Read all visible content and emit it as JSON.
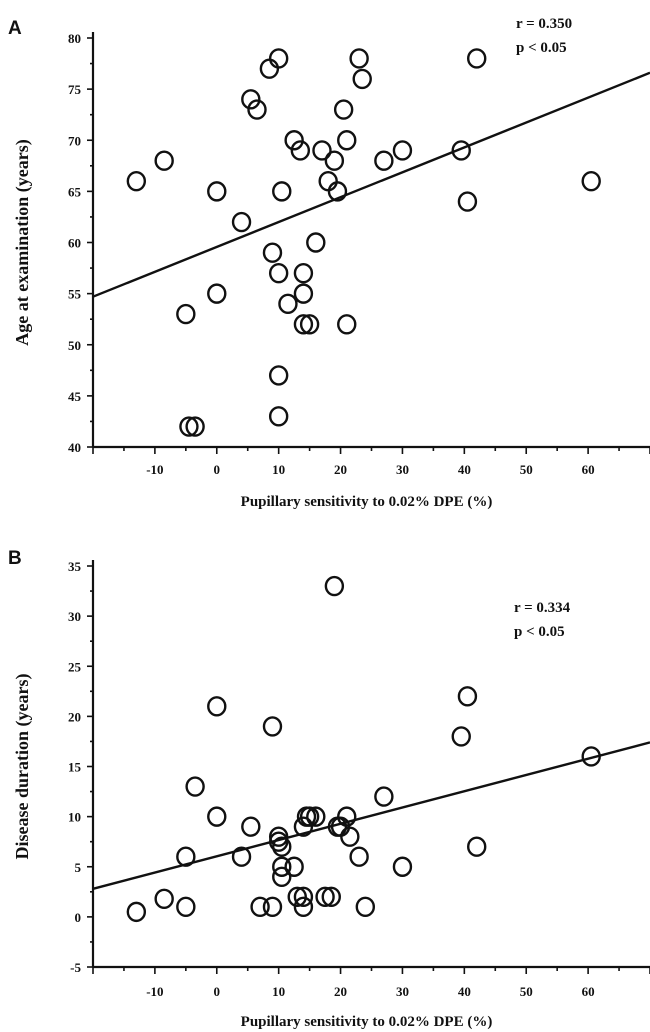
{
  "chart_data": [
    {
      "type": "scatter",
      "panel": "A",
      "xlabel": "Pupillary sensitivity to 0.02% DPE (%)",
      "ylabel": "Age at examination (years)",
      "xlim": [
        -20,
        70
      ],
      "ylim": [
        40,
        80
      ],
      "xticks": [
        -10,
        0,
        10,
        20,
        30,
        40,
        50,
        60
      ],
      "yticks": [
        40,
        45,
        50,
        55,
        60,
        65,
        70,
        75,
        80
      ],
      "stats": [
        "r = 0.350",
        "p < 0.05"
      ],
      "regression": {
        "x": [
          -20,
          70
        ],
        "y": [
          54.7,
          76.6
        ]
      },
      "points": [
        [
          -13,
          66
        ],
        [
          -8.5,
          68
        ],
        [
          -5,
          53
        ],
        [
          -4.5,
          42
        ],
        [
          -3.5,
          42
        ],
        [
          0,
          65
        ],
        [
          0,
          55
        ],
        [
          4,
          62
        ],
        [
          5.5,
          74
        ],
        [
          6.5,
          73
        ],
        [
          8.5,
          77
        ],
        [
          9,
          59
        ],
        [
          10,
          78
        ],
        [
          10,
          57
        ],
        [
          10,
          47
        ],
        [
          10,
          43
        ],
        [
          10.5,
          65
        ],
        [
          11.5,
          54
        ],
        [
          12.5,
          70
        ],
        [
          13.5,
          69
        ],
        [
          14,
          55
        ],
        [
          14,
          57
        ],
        [
          14,
          52
        ],
        [
          15,
          52
        ],
        [
          16,
          60
        ],
        [
          17,
          69
        ],
        [
          18,
          66
        ],
        [
          19,
          68
        ],
        [
          19.5,
          65
        ],
        [
          20.5,
          73
        ],
        [
          21,
          70
        ],
        [
          21,
          52
        ],
        [
          23,
          78
        ],
        [
          23.5,
          76
        ],
        [
          27,
          68
        ],
        [
          30,
          69
        ],
        [
          39.5,
          69
        ],
        [
          40.5,
          64
        ],
        [
          42,
          78
        ],
        [
          60.5,
          66
        ]
      ]
    },
    {
      "type": "scatter",
      "panel": "B",
      "xlabel": "Pupillary sensitivity to 0.02% DPE (%)",
      "ylabel": "Disease duration (years)",
      "xlim": [
        -20,
        70
      ],
      "ylim": [
        -5,
        35
      ],
      "xticks": [
        -10,
        0,
        10,
        20,
        30,
        40,
        50,
        60
      ],
      "yticks": [
        -5,
        0,
        5,
        10,
        15,
        20,
        25,
        30,
        35
      ],
      "stats": [
        "r = 0.334",
        "p < 0.05"
      ],
      "regression": {
        "x": [
          -20,
          70
        ],
        "y": [
          2.8,
          17.4
        ]
      },
      "points": [
        [
          -13,
          0.5
        ],
        [
          -8.5,
          1.8
        ],
        [
          -5,
          1
        ],
        [
          -5,
          6
        ],
        [
          -3.5,
          13
        ],
        [
          0,
          21
        ],
        [
          0,
          10
        ],
        [
          4,
          6
        ],
        [
          5.5,
          9
        ],
        [
          7,
          1
        ],
        [
          9,
          19
        ],
        [
          9,
          1
        ],
        [
          10,
          8
        ],
        [
          10,
          7.5
        ],
        [
          10.5,
          7
        ],
        [
          10.5,
          5
        ],
        [
          10.5,
          4
        ],
        [
          12.5,
          5
        ],
        [
          13,
          2
        ],
        [
          14,
          2
        ],
        [
          14,
          1
        ],
        [
          14,
          9
        ],
        [
          14.5,
          10
        ],
        [
          15,
          10
        ],
        [
          16,
          10
        ],
        [
          17.5,
          2
        ],
        [
          18.5,
          2
        ],
        [
          19.5,
          9
        ],
        [
          19,
          33
        ],
        [
          20,
          9
        ],
        [
          21,
          10
        ],
        [
          21.5,
          8
        ],
        [
          23,
          6
        ],
        [
          24,
          1
        ],
        [
          27,
          12
        ],
        [
          30,
          5
        ],
        [
          39.5,
          18
        ],
        [
          40.5,
          22
        ],
        [
          42,
          7
        ],
        [
          60.5,
          16
        ]
      ]
    }
  ]
}
